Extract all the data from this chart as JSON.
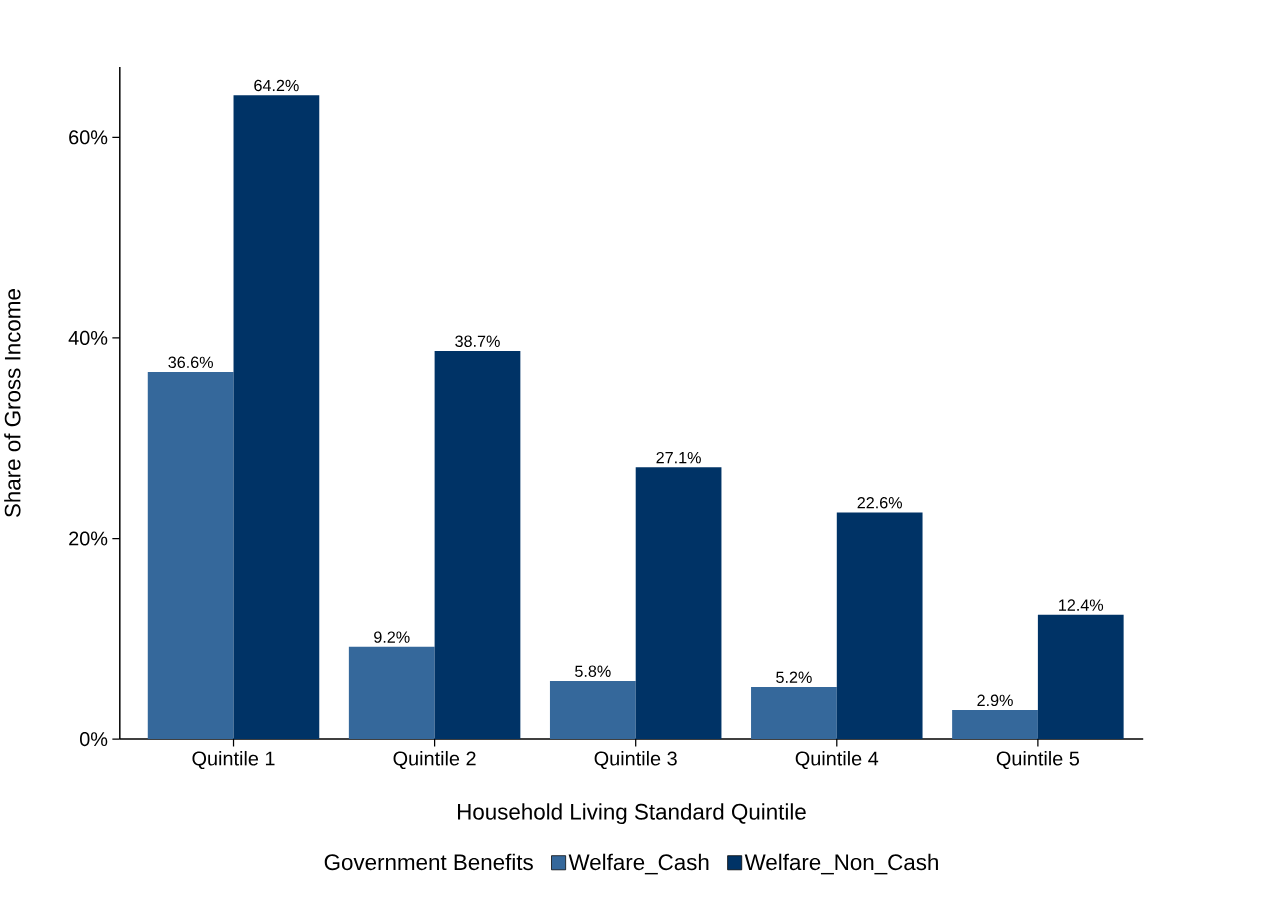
{
  "chart_data": {
    "type": "bar",
    "xlabel": "Household Living Standard Quintile",
    "ylabel": "Share of Gross Income",
    "legend_title": "Government Benefits",
    "categories": [
      "Quintile 1",
      "Quintile 2",
      "Quintile 3",
      "Quintile 4",
      "Quintile 5"
    ],
    "series": [
      {
        "name": "Welfare_Cash",
        "color": "#35689b",
        "values": [
          36.6,
          9.2,
          5.8,
          5.2,
          2.9
        ],
        "value_labels": [
          "36.6%",
          "9.2%",
          "5.8%",
          "5.2%",
          "2.9%"
        ]
      },
      {
        "name": "Welfare_Non_Cash",
        "color": "#003366",
        "values": [
          64.2,
          38.7,
          27.1,
          22.6,
          12.4
        ],
        "value_labels": [
          "64.2%",
          "38.7%",
          "27.1%",
          "22.6%",
          "12.4%"
        ]
      }
    ],
    "ylim": [
      0,
      67
    ],
    "yticks": [
      {
        "value": 0,
        "label": "0%"
      },
      {
        "value": 20,
        "label": "20%"
      },
      {
        "value": 40,
        "label": "40%"
      },
      {
        "value": 60,
        "label": "60%"
      }
    ],
    "legend": "bottom",
    "grid": false
  }
}
